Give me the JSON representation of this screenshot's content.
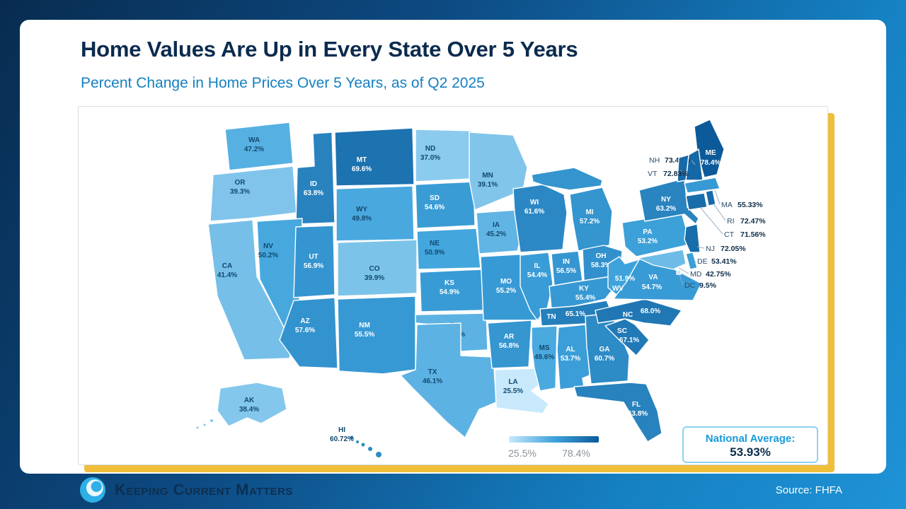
{
  "slide": {
    "title": "Home Values Are Up in Every State Over 5 Years",
    "subtitle": "Percent Change in Home Prices Over 5 Years, as of Q2 2025"
  },
  "map": {
    "legend": {
      "min_label": "25.5%",
      "max_label": "78.4%"
    },
    "national_average": {
      "label": "National Average:",
      "value": "53.93%"
    }
  },
  "footer": {
    "logo_text": "Keeping Current Matters",
    "source": "Source: FHFA"
  },
  "colors": {
    "title_navy": "#0b2b4e",
    "subtitle_blue": "#1580c2",
    "accent_yellow": "#efbe3b",
    "background_top": "#082c50",
    "background_bottom": "#1e93d6",
    "natavg_border": "#8ed2f2",
    "natavg_title": "#189ad8",
    "natavg_value": "#0c2c4c",
    "legend_text": "#8a9199",
    "label_dark": "#13496f",
    "label_light": "#ffffff",
    "callout_text": "#2b4d6b",
    "callout_value": "#0f2d49",
    "logo_navy": "#0d2f50",
    "source_text": "#ffffff",
    "map_ramp": [
      "#c7e9fb",
      "#3ea3dc",
      "#0c5a9a"
    ]
  },
  "chart_data": {
    "type": "heatmap",
    "subtype": "us-state-choropleth",
    "title": "Percent Change in Home Prices Over 5 Years, as of Q2 2025",
    "unit": "%",
    "range": {
      "min": 25.5,
      "max": 78.4
    },
    "national_average": 53.93,
    "legend": {
      "min_label": "25.5%",
      "max_label": "78.4%"
    },
    "states": [
      {
        "code": "WA",
        "value": 47.2,
        "label": "47.2%"
      },
      {
        "code": "OR",
        "value": 39.3,
        "label": "39.3%"
      },
      {
        "code": "CA",
        "value": 41.4,
        "label": "41.4%"
      },
      {
        "code": "ID",
        "value": 63.8,
        "label": "63.8%"
      },
      {
        "code": "NV",
        "value": 50.2,
        "label": "50.2%"
      },
      {
        "code": "MT",
        "value": 69.6,
        "label": "69.6%"
      },
      {
        "code": "WY",
        "value": 49.8,
        "label": "49.8%"
      },
      {
        "code": "UT",
        "value": 56.9,
        "label": "56.9%"
      },
      {
        "code": "CO",
        "value": 39.9,
        "label": "39.9%"
      },
      {
        "code": "AZ",
        "value": 57.6,
        "label": "57.6%"
      },
      {
        "code": "NM",
        "value": 55.5,
        "label": "55.5%"
      },
      {
        "code": "ND",
        "value": 37.0,
        "label": "37.0%"
      },
      {
        "code": "SD",
        "value": 54.6,
        "label": "54.6%"
      },
      {
        "code": "NE",
        "value": 50.9,
        "label": "50.9%"
      },
      {
        "code": "KS",
        "value": 54.9,
        "label": "54.9%"
      },
      {
        "code": "OK",
        "value": 46.2,
        "label": "46.2%"
      },
      {
        "code": "TX",
        "value": 46.1,
        "label": "46.1%"
      },
      {
        "code": "MN",
        "value": 39.1,
        "label": "39.1%"
      },
      {
        "code": "IA",
        "value": 45.2,
        "label": "45.2%"
      },
      {
        "code": "MO",
        "value": 55.2,
        "label": "55.2%"
      },
      {
        "code": "AR",
        "value": 56.8,
        "label": "56.8%"
      },
      {
        "code": "LA",
        "value": 25.5,
        "label": "25.5%"
      },
      {
        "code": "WI",
        "value": 61.6,
        "label": "61.6%"
      },
      {
        "code": "IL",
        "value": 54.4,
        "label": "54.4%"
      },
      {
        "code": "MS",
        "value": 49.6,
        "label": "49.6%"
      },
      {
        "code": "MI",
        "value": 57.2,
        "label": "57.2%"
      },
      {
        "code": "IN",
        "value": 56.5,
        "label": "56.5%"
      },
      {
        "code": "OH",
        "value": 58.3,
        "label": "58.3%"
      },
      {
        "code": "KY",
        "value": 55.4,
        "label": "55.4%"
      },
      {
        "code": "TN",
        "value": 65.1,
        "label": "65.1%"
      },
      {
        "code": "AL",
        "value": 53.7,
        "label": "53.7%"
      },
      {
        "code": "GA",
        "value": 60.7,
        "label": "60.7%"
      },
      {
        "code": "FL",
        "value": 63.8,
        "label": "63.8%"
      },
      {
        "code": "SC",
        "value": 67.1,
        "label": "67.1%"
      },
      {
        "code": "NC",
        "value": 68.0,
        "label": "68.0%"
      },
      {
        "code": "VA",
        "value": 54.7,
        "label": "54.7%"
      },
      {
        "code": "WV",
        "value": 51.9,
        "label": "51.9%"
      },
      {
        "code": "PA",
        "value": 53.2,
        "label": "53.2%"
      },
      {
        "code": "NY",
        "value": 63.2,
        "label": "63.2%"
      },
      {
        "code": "ME",
        "value": 78.4,
        "label": "78.4%"
      },
      {
        "code": "NH",
        "value": 73.47,
        "label": "73.47%"
      },
      {
        "code": "VT",
        "value": 72.83,
        "label": "72.83%"
      },
      {
        "code": "MA",
        "value": 55.33,
        "label": "55.33%"
      },
      {
        "code": "RI",
        "value": 72.47,
        "label": "72.47%"
      },
      {
        "code": "CT",
        "value": 71.56,
        "label": "71.56%"
      },
      {
        "code": "NJ",
        "value": 72.05,
        "label": "72.05%"
      },
      {
        "code": "DE",
        "value": 53.41,
        "label": "53.41%"
      },
      {
        "code": "MD",
        "value": 42.75,
        "label": "42.75%"
      },
      {
        "code": "DC",
        "value": 9.5,
        "label": "9.5%"
      },
      {
        "code": "AK",
        "value": 38.4,
        "label": "38.4%"
      },
      {
        "code": "HI",
        "value": 60.72,
        "label": "60.72%"
      }
    ]
  }
}
